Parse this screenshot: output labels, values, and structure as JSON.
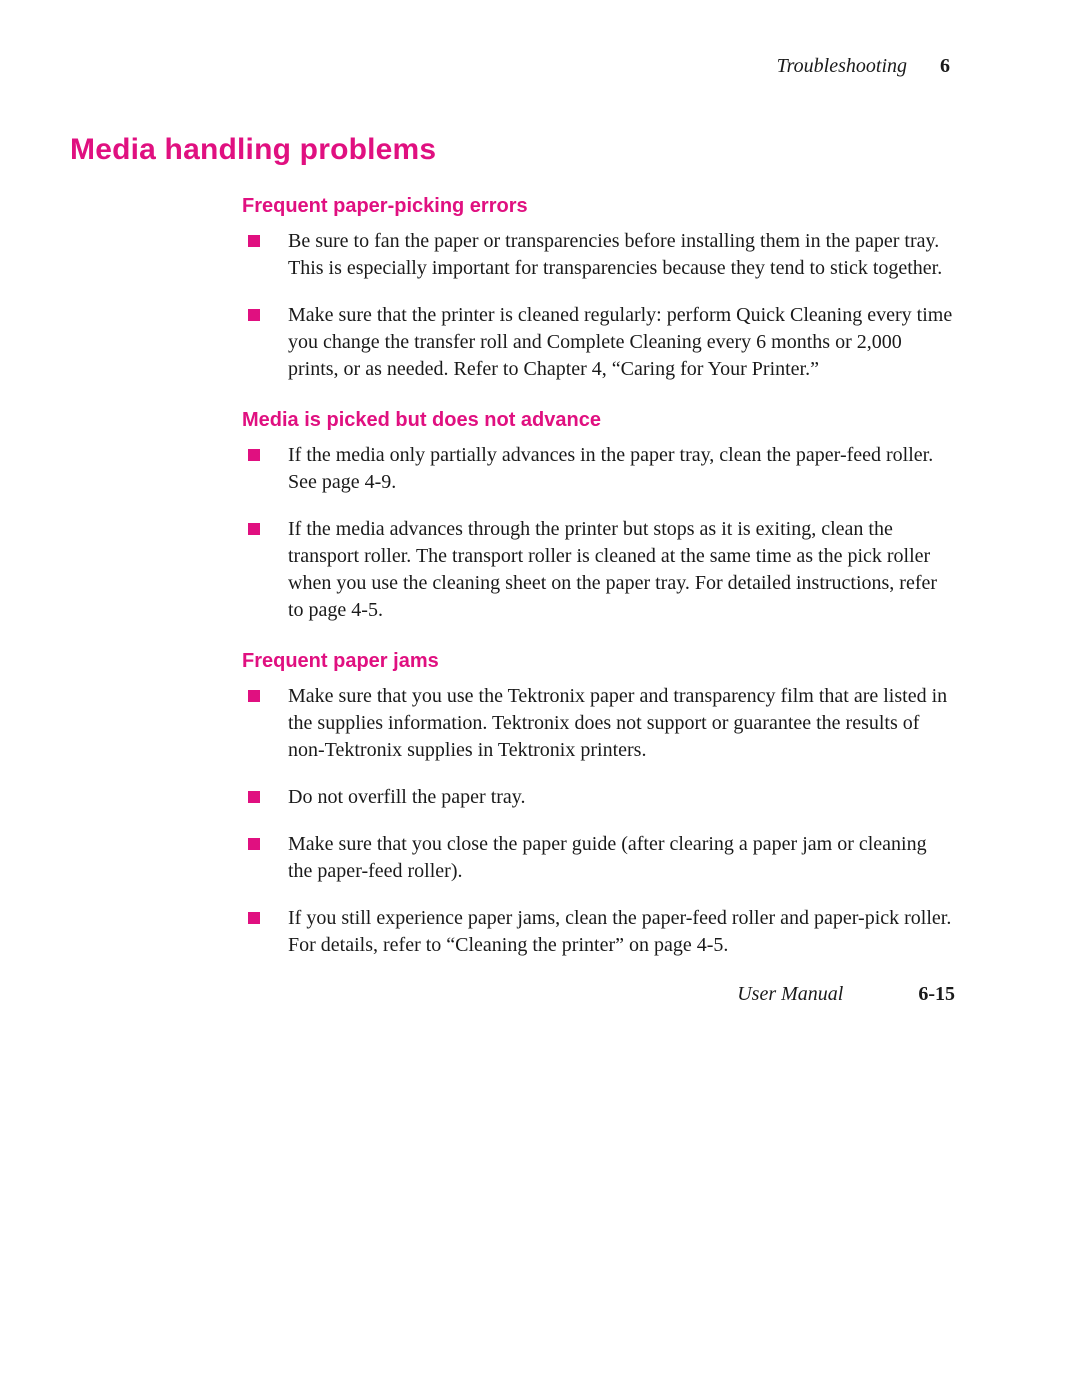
{
  "header": {
    "section_title": "Troubleshooting",
    "chapter_number": "6"
  },
  "title": "Media handling problems",
  "sections": [
    {
      "heading": "Frequent paper-picking errors",
      "items": [
        "Be sure to fan the paper or transparencies before installing them in the paper tray.  This is especially important for transparencies because they tend to stick together.",
        "Make sure that the printer is cleaned regularly:  perform Quick Cleaning every time you change the transfer roll and Complete Cleaning every 6 months or 2,000 prints, or as needed.  Refer to Chapter 4, “Caring for Your Printer.”"
      ]
    },
    {
      "heading": "Media is picked but does not advance",
      "items": [
        "If the media only partially advances in the paper tray, clean the paper-feed roller.  See page 4-9.",
        "If the media advances through the printer but stops as it is exiting, clean the transport roller.  The transport roller is cleaned at the same time as the pick roller when you use the cleaning sheet on the paper tray.  For detailed instructions, refer to page 4-5."
      ]
    },
    {
      "heading": "Frequent paper jams",
      "items": [
        "Make sure that you use the Tektronix paper and transparency film that are listed in the supplies information.  Tektronix does not support or guarantee the results of non-Tektronix supplies in Tektronix printers.",
        "Do not overfill the paper tray.",
        "Make sure that you close the paper guide (after clearing a paper jam or cleaning the paper-feed roller).",
        "If you still experience paper jams, clean the paper-feed roller and paper-pick roller.  For details, refer to “Cleaning the printer” on page 4-5."
      ]
    }
  ],
  "footer": {
    "doc_label": "User Manual",
    "page_number": "6-15"
  },
  "colors": {
    "accent": "#e01080",
    "text": "#1a1a1a",
    "background": "#ffffff"
  }
}
